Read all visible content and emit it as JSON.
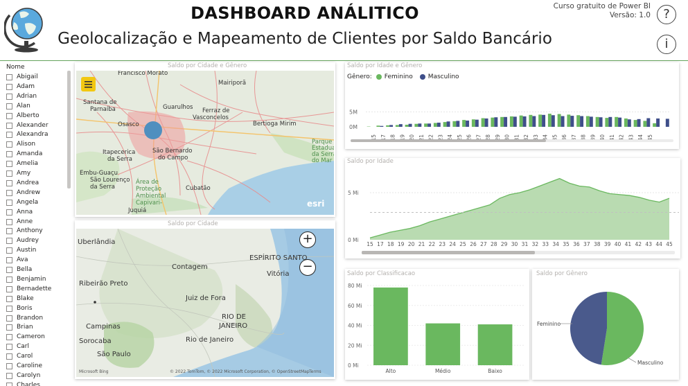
{
  "header": {
    "title": "DASHBOARD ANÁLITICO",
    "subtitle": "Geolocalização e Mapeamento de Clientes por Saldo Bancário",
    "course_line": "Curso gratuito de Power BI",
    "version": "Versão: 1.0",
    "help_glyph": "?",
    "info_glyph": "i",
    "logo_icon": "globe-icon"
  },
  "slicer": {
    "header": "Nome",
    "items": [
      "Abigail",
      "Adam",
      "Adrian",
      "Alan",
      "Alberto",
      "Alexander",
      "Alexandra",
      "Alison",
      "Amanda",
      "Amelia",
      "Amy",
      "Andrea",
      "Andrew",
      "Angela",
      "Anna",
      "Anne",
      "Anthony",
      "Audrey",
      "Austin",
      "Ava",
      "Bella",
      "Benjamin",
      "Bernadette",
      "Blake",
      "Boris",
      "Brandon",
      "Brian",
      "Cameron",
      "Carl",
      "Carol",
      "Caroline",
      "Carolyn",
      "Charles"
    ]
  },
  "map1": {
    "title": "Saldo por Cidade e Gênero",
    "menu_icon": "hamburger-icon",
    "labels": [
      "Francisco Morato",
      "Mairiporã",
      "Santana de Parnaíba",
      "Guarulhos",
      "Osasco",
      "Ferraz de Vasconcelos",
      "Bertioga Mirim",
      "Itapecerica da Serra",
      "São Bernardo do Campo",
      "Embu-Guaçu",
      "São Lourenço da Serra",
      "Área de Proteção Ambiental Capivari-",
      "Cubatão",
      "Juquiá",
      "Parque Estadual da Serra do Mar"
    ],
    "attribution": "esri"
  },
  "map2": {
    "title": "Saldo por Cidade",
    "zoom_in": "+",
    "zoom_out": "−",
    "labels": [
      "Uberlândia",
      "ESPÍRITO SANTO",
      "Contagem",
      "Vitória",
      "Ribeirão Preto",
      "Juiz de Fora",
      "RIO DE JANEIRO",
      "Campinas",
      "Rio de Janeiro",
      "Sorocaba",
      "São Paulo"
    ],
    "bing": "Microsoft Bing",
    "copyright": "© 2022 TomTom, © 2022 Microsoft Corporation, © OpenStreetMap",
    "terms": "Terms"
  },
  "colors": {
    "feminino": "#6ab85f",
    "masculino": "#3f4f8a",
    "area_fill": "#b9dbb1",
    "area_line": "#6ab85f",
    "bar": "#6ab85f",
    "pie_fem": "#6ab85f",
    "pie_masc": "#4a5a8c",
    "header_line": "#63a35c"
  },
  "charts": {
    "idade_genero": {
      "title": "Saldo por Idade e Gênero",
      "legend_label": "Gênero:",
      "legend_fem": "Feminino",
      "legend_masc": "Masculino",
      "y_ticks": [
        "5M",
        "0M"
      ]
    },
    "idade": {
      "title": "Saldo por Idade",
      "y_ticks": [
        "5 Mi",
        "0 Mi"
      ]
    },
    "classificacao": {
      "title": "Saldo por Classificacao",
      "y_ticks": [
        "80 Mi",
        "60 Mi",
        "40 Mi",
        "20 Mi",
        "0 Mi"
      ]
    },
    "genero": {
      "title": "Saldo por Gênero",
      "label_fem": "Feminino",
      "label_masc": "Masculino"
    }
  },
  "chart_data": [
    {
      "type": "bar",
      "title": "Saldo por Idade e Gênero",
      "categories": [
        "15",
        "16",
        "17",
        "18",
        "19",
        "20",
        "21",
        "22",
        "23",
        "24",
        "25",
        "26",
        "27",
        "28",
        "29",
        "30",
        "31",
        "32",
        "33",
        "34",
        "35",
        "36",
        "37",
        "38",
        "39",
        "40",
        "41",
        "42",
        "43",
        "44",
        "45",
        "46"
      ],
      "x_tick_labels": [
        "15",
        "17",
        "18",
        "19",
        "20",
        "21",
        "22",
        "23",
        "24",
        "25",
        "26",
        "27",
        "28",
        "29",
        "30",
        "31",
        "32",
        "33",
        "34",
        "35",
        "36",
        "37",
        "38",
        "39",
        "40",
        "41",
        "42",
        "43",
        "44",
        "45"
      ],
      "ylim": [
        0,
        10
      ],
      "series": [
        {
          "name": "Feminino",
          "values": [
            0.1,
            0.4,
            0.5,
            0.6,
            0.7,
            1.0,
            1.1,
            1.3,
            1.6,
            1.9,
            2.3,
            2.5,
            2.9,
            3.1,
            3.3,
            3.5,
            3.8,
            4.0,
            4.1,
            4.4,
            4.3,
            4.1,
            3.9,
            3.6,
            3.3,
            3.0,
            3.3,
            2.8,
            2.3,
            2.0,
            1.2,
            0.0
          ]
        },
        {
          "name": "Masculino",
          "values": [
            0.0,
            0.3,
            0.6,
            0.9,
            1.0,
            1.1,
            1.1,
            1.4,
            1.8,
            2.0,
            2.1,
            2.4,
            2.8,
            3.2,
            3.3,
            3.4,
            3.5,
            3.6,
            4.0,
            3.9,
            3.6,
            3.7,
            3.6,
            3.4,
            3.2,
            3.3,
            3.1,
            2.5,
            2.6,
            2.9,
            2.8,
            2.7
          ]
        }
      ]
    },
    {
      "type": "area",
      "title": "Saldo por Idade",
      "x": [
        "15",
        "16",
        "17",
        "18",
        "19",
        "20",
        "21",
        "22",
        "23",
        "24",
        "25",
        "26",
        "27",
        "28",
        "29",
        "30",
        "31",
        "32",
        "33",
        "34",
        "35",
        "36",
        "37",
        "38",
        "39",
        "40",
        "41",
        "42",
        "43",
        "44",
        "45"
      ],
      "x_tick_labels": [
        "15",
        "17",
        "18",
        "19",
        "20",
        "21",
        "22",
        "23",
        "24",
        "25",
        "26",
        "27",
        "28",
        "29",
        "30",
        "31",
        "32",
        "33",
        "34",
        "35",
        "36",
        "37",
        "38",
        "39",
        "40",
        "41",
        "42",
        "43",
        "44",
        "45"
      ],
      "values": [
        0.2,
        0.5,
        0.8,
        1.0,
        1.2,
        1.5,
        1.9,
        2.2,
        2.5,
        2.8,
        3.1,
        3.4,
        3.7,
        4.4,
        4.8,
        5.0,
        5.3,
        5.7,
        6.1,
        6.5,
        6.0,
        5.7,
        5.6,
        5.2,
        4.9,
        4.8,
        4.7,
        4.5,
        4.2,
        4.0,
        4.4
      ],
      "ylim": [
        0,
        7.5
      ],
      "reference_line": 2.9
    },
    {
      "type": "bar",
      "title": "Saldo por Classificacao",
      "categories": [
        "Alto",
        "Médio",
        "Baixo"
      ],
      "values": [
        78,
        42,
        41
      ],
      "ylim": [
        0,
        80
      ]
    },
    {
      "type": "pie",
      "title": "Saldo por Gênero",
      "categories": [
        "Feminino",
        "Masculino"
      ],
      "values": [
        52.5,
        47.5
      ]
    }
  ]
}
